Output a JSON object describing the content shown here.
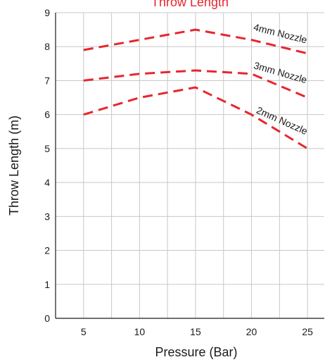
{
  "chart_data": {
    "type": "line",
    "title": "Throw Length",
    "xlabel": "Pressure (Bar)",
    "ylabel": "Throw Length (m)",
    "x": [
      5,
      10,
      15,
      20,
      25
    ],
    "xlim": [
      2.5,
      26.5
    ],
    "ylim": [
      0,
      9
    ],
    "x_ticks": [
      "5",
      "10",
      "15",
      "20",
      "25"
    ],
    "y_ticks": [
      "0",
      "1",
      "2",
      "3",
      "4",
      "5",
      "6",
      "7",
      "8",
      "9"
    ],
    "grid": true,
    "line_style": "dashed",
    "series_color": "#e8262e",
    "series": [
      {
        "name": "4mm Nozzle",
        "values": [
          7.9,
          8.2,
          8.5,
          8.2,
          7.8
        ]
      },
      {
        "name": "3mm Nozzle",
        "values": [
          7.0,
          7.2,
          7.3,
          7.2,
          6.5
        ]
      },
      {
        "name": "2mm Nozzle",
        "values": [
          6.0,
          6.5,
          6.8,
          6.0,
          5.0
        ]
      }
    ]
  }
}
